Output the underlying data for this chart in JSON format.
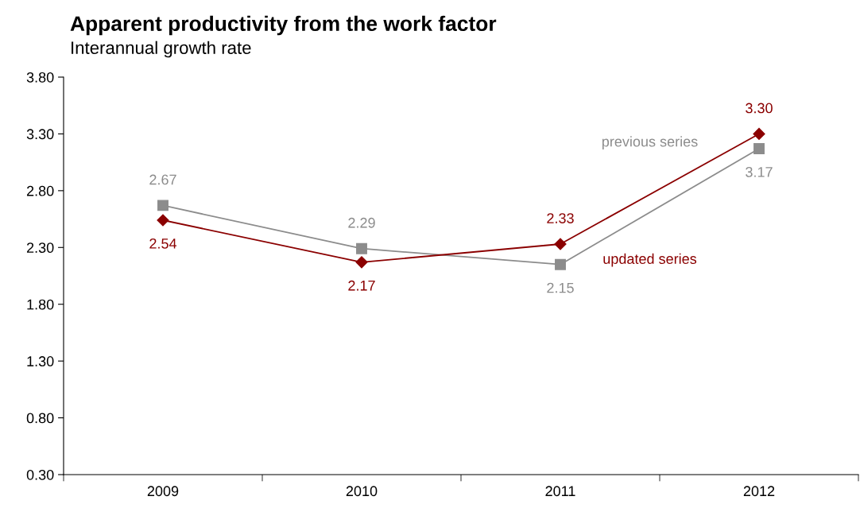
{
  "chart_data": {
    "type": "line",
    "title": "Apparent productivity from the work factor",
    "subtitle": "Interannual growth rate",
    "categories": [
      "2009",
      "2010",
      "2011",
      "2012"
    ],
    "series": [
      {
        "name": "previous series",
        "color": "#8c8c8c",
        "marker": "square",
        "values": [
          2.67,
          2.29,
          2.15,
          3.17
        ],
        "value_labels": [
          "2.67",
          "2.29",
          "2.15",
          "3.17"
        ]
      },
      {
        "name": "updated series",
        "color": "#8b0000",
        "marker": "diamond",
        "values": [
          2.54,
          2.17,
          2.33,
          3.3
        ],
        "value_labels": [
          "2.54",
          "2.17",
          "2.33",
          "3.30"
        ]
      }
    ],
    "ylim": [
      0.3,
      3.8
    ],
    "yticks": [
      {
        "value": 0.3,
        "label": "0.30"
      },
      {
        "value": 0.8,
        "label": "0.80"
      },
      {
        "value": 1.3,
        "label": "1.30"
      },
      {
        "value": 1.8,
        "label": "1.80"
      },
      {
        "value": 2.3,
        "label": "2.30"
      },
      {
        "value": 2.8,
        "label": "2.80"
      },
      {
        "value": 3.3,
        "label": "3.30"
      },
      {
        "value": 3.8,
        "label": "3.80"
      }
    ],
    "grid": false,
    "legend": false,
    "line_style": "solid"
  }
}
